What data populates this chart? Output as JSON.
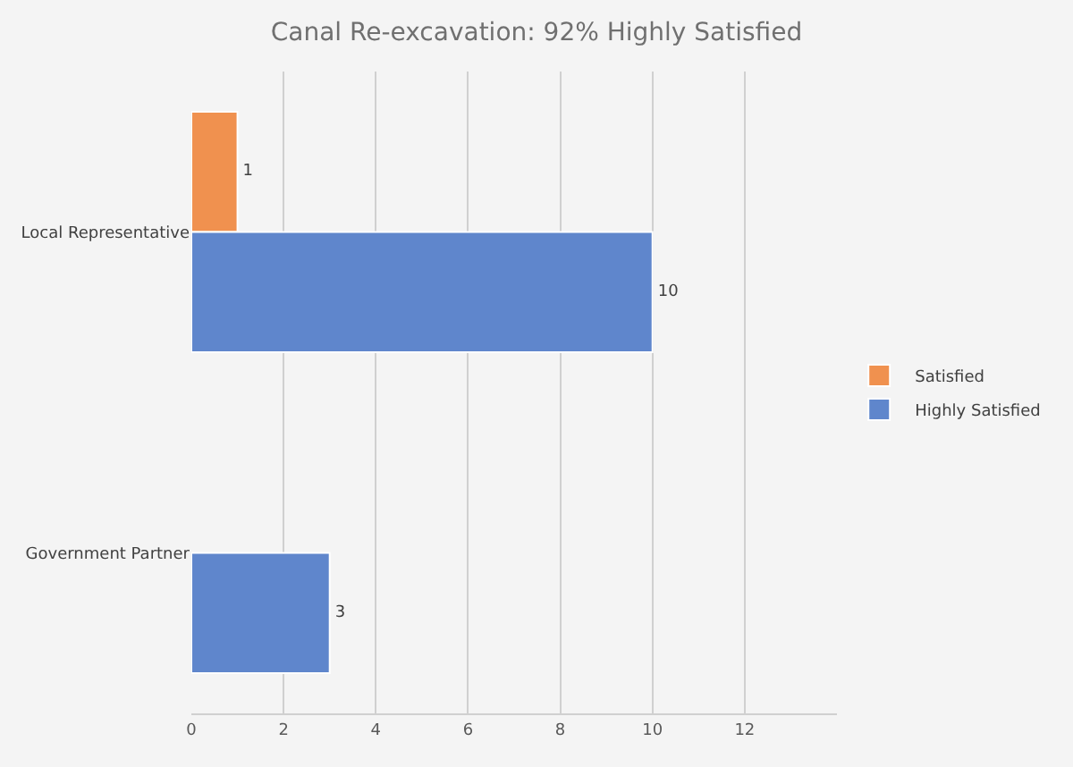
{
  "chart_data": {
    "type": "bar",
    "orientation": "horizontal",
    "title": "Canal Re-excavation: 92% Highly Satisfied",
    "categories": [
      "Local Representative",
      "Government Partner"
    ],
    "series": [
      {
        "name": "Satisfied",
        "color": "#f0914f",
        "values": [
          1,
          null
        ]
      },
      {
        "name": "Highly Satisfied",
        "color": "#5f86cc",
        "values": [
          10,
          3
        ]
      }
    ],
    "xlim": [
      0,
      14
    ],
    "xticks": [
      0,
      2,
      4,
      6,
      8,
      10,
      12
    ],
    "grid": "x",
    "legend": "right",
    "data_labels": true
  }
}
